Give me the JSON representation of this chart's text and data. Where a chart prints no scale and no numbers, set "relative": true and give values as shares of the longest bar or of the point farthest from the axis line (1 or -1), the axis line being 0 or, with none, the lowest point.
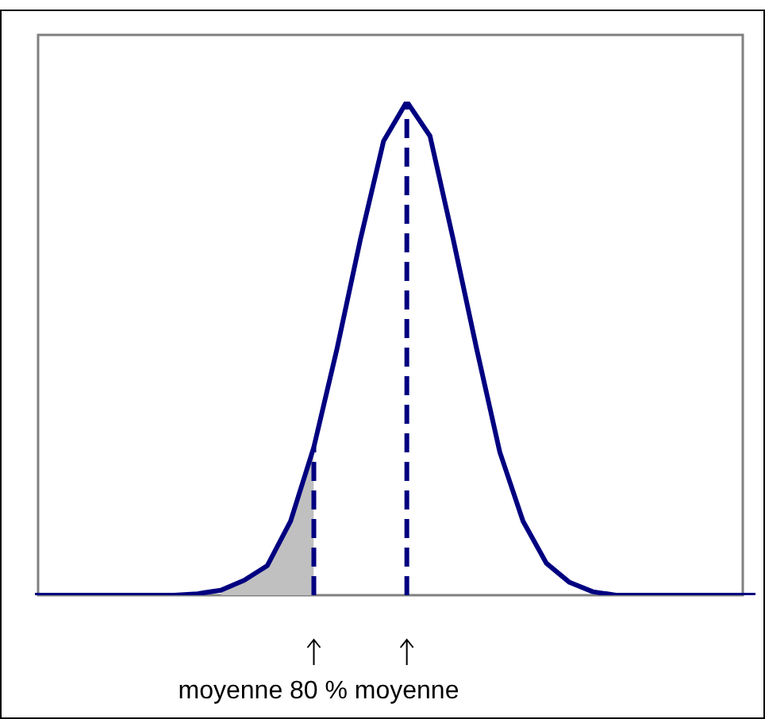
{
  "chart_data": {
    "type": "line",
    "relative": true,
    "categories": [
      null,
      null,
      null,
      null,
      null,
      null,
      null,
      null,
      null,
      null,
      null,
      null,
      null,
      null,
      null,
      null,
      null,
      null,
      null,
      null,
      null,
      null,
      null,
      null,
      null,
      null,
      null,
      null,
      null,
      null,
      null,
      null
    ],
    "series": [
      {
        "type": "area",
        "color": "#c0c0c0",
        "values": [
          null,
          null,
          null,
          null,
          null,
          null,
          null,
          null,
          0.01,
          0.03,
          0.06,
          0.15,
          0.3,
          null,
          null,
          null,
          null,
          null,
          null,
          null,
          null,
          null,
          null,
          null,
          null,
          null,
          null,
          null,
          null,
          null,
          null,
          null
        ]
      },
      {
        "type": "line",
        "color": "#000080",
        "values": [
          0,
          0,
          0,
          0,
          0,
          0,
          0,
          0.003,
          0.01,
          0.03,
          0.06,
          0.15,
          0.3,
          0.5,
          0.72,
          0.92,
          1,
          0.93,
          0.72,
          0.5,
          0.29,
          0.15,
          0.065,
          0.026,
          0.007,
          0,
          0,
          0,
          0,
          0,
          0,
          0
        ]
      }
    ],
    "annotations": [
      "moyenne 80 %",
      "moyenne"
    ],
    "tick_labels": false,
    "marker": "none"
  }
}
